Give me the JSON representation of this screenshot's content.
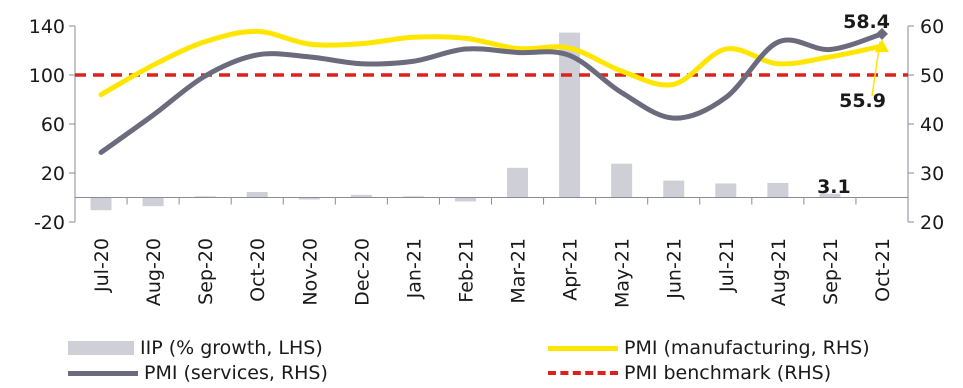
{
  "chart_data": {
    "type": "bar+line",
    "categories": [
      "Jul-20",
      "Aug-20",
      "Sep-20",
      "Oct-20",
      "Nov-20",
      "Dec-20",
      "Jan-21",
      "Feb-21",
      "Mar-21",
      "Apr-21",
      "May-21",
      "Jun-21",
      "Jul-21",
      "Aug-21",
      "Sep-21",
      "Oct-21"
    ],
    "left_axis": {
      "ticks": [
        "140",
        "100",
        "60",
        "20",
        "-20"
      ],
      "ylim": [
        -20,
        140
      ]
    },
    "right_axis": {
      "ticks": [
        "60",
        "50",
        "40",
        "30",
        "20"
      ],
      "ylim": [
        20,
        60
      ]
    },
    "series": [
      {
        "name": "IIP (% growth, LHS)",
        "type": "bar",
        "axis": "left",
        "color": "#cfcfd8",
        "values": [
          -10.4,
          -7.1,
          1.0,
          4.5,
          -1.6,
          2.2,
          1.0,
          -3.2,
          24.2,
          134.6,
          27.6,
          13.8,
          11.5,
          11.9,
          3.1,
          null
        ]
      },
      {
        "name": "PMI (manufacturing, RHS)",
        "type": "line",
        "axis": "right",
        "color": "#ffe600",
        "values": [
          46.0,
          52.0,
          56.8,
          58.9,
          56.3,
          56.4,
          57.7,
          57.5,
          55.4,
          55.5,
          50.8,
          48.1,
          55.3,
          52.3,
          53.7,
          55.9
        ]
      },
      {
        "name": "PMI (services, RHS)",
        "type": "line",
        "axis": "right",
        "color": "#6b6b7d",
        "values": [
          34.2,
          41.8,
          49.8,
          54.1,
          53.7,
          52.3,
          52.8,
          55.3,
          54.6,
          54.0,
          46.4,
          41.2,
          45.4,
          56.7,
          55.2,
          58.4
        ]
      },
      {
        "name": "PMI benchmark (RHS)",
        "type": "line",
        "axis": "right",
        "color": "#e0201b",
        "dashed": true,
        "values": [
          50,
          50,
          50,
          50,
          50,
          50,
          50,
          50,
          50,
          50,
          50,
          50,
          50,
          50,
          50,
          50
        ]
      }
    ],
    "annotations": [
      "58.4",
      "55.9",
      "3.1"
    ],
    "grid": false,
    "legend_position": "bottom"
  }
}
